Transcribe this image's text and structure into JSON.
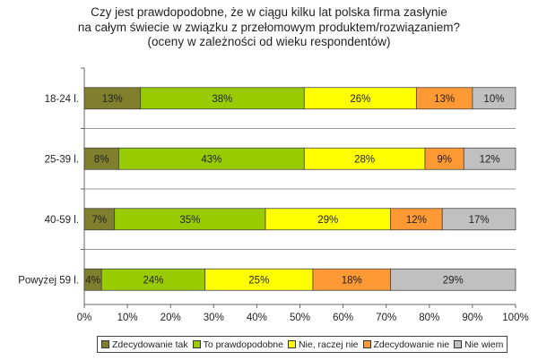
{
  "chart_data": {
    "type": "bar",
    "orientation": "horizontal",
    "stacked": true,
    "title": [
      "Czy jest prawdopodobne, że w ciągu kilku lat polska firma zasłynie",
      "na całym świecie w związku z przełomowym produktem/rozwiązaniem?",
      "(oceny w zależności od wieku respondentów)"
    ],
    "categories": [
      "18-24 l.",
      "25-39 l.",
      "40-59 l.",
      "Powyżej 59 l."
    ],
    "series": [
      {
        "name": "Zdecydowanie tak",
        "color": "#7f7f2e",
        "values": [
          13,
          8,
          7,
          4
        ]
      },
      {
        "name": "To prawdopodobne",
        "color": "#99cc00",
        "values": [
          38,
          43,
          35,
          24
        ]
      },
      {
        "name": "Nie, raczej nie",
        "color": "#ffff00",
        "values": [
          26,
          28,
          29,
          25
        ]
      },
      {
        "name": "Zdecydowanie nie",
        "color": "#ff9933",
        "values": [
          13,
          9,
          12,
          18
        ]
      },
      {
        "name": "Nie wiem",
        "color": "#c0c0c0",
        "values": [
          10,
          12,
          17,
          29
        ]
      }
    ],
    "xlim": [
      0,
      100
    ],
    "xticks": [
      "0%",
      "10%",
      "20%",
      "30%",
      "40%",
      "50%",
      "60%",
      "70%",
      "80%",
      "90%",
      "100%"
    ],
    "legend_position": "bottom",
    "grid": "horizontal"
  }
}
